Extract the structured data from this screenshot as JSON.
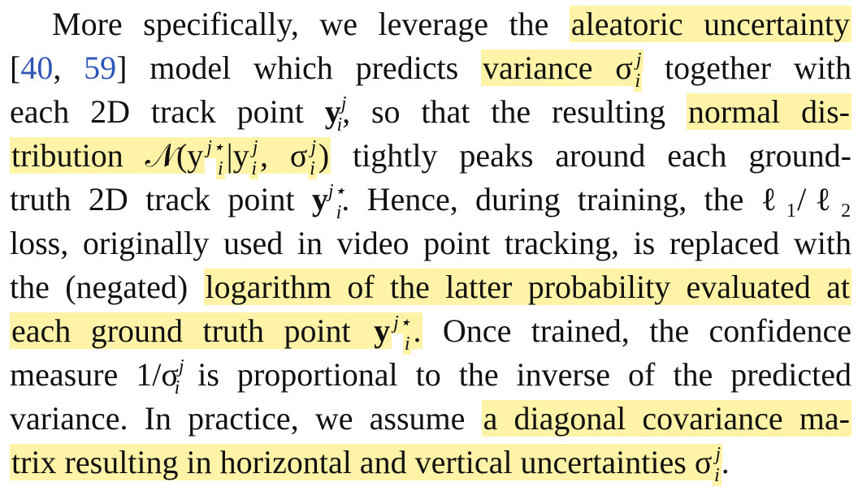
{
  "lines": [
    {
      "segments": [
        {
          "t": "More specifically, we leverage the "
        },
        {
          "t": "aleatoric uncertainty",
          "hl": true
        }
      ]
    },
    {
      "segments": [
        {
          "t": "["
        },
        {
          "t": "40",
          "cite": true
        },
        {
          "t": ", "
        },
        {
          "t": "59",
          "cite": true
        },
        {
          "t": "] model which predicts "
        },
        {
          "t": "variance σ",
          "hl": true,
          "supsub": [
            "j",
            "i"
          ]
        },
        {
          "t": " together with"
        }
      ]
    },
    {
      "segments": [
        {
          "t": "each 2D track point "
        },
        {
          "t": "y",
          "math": true,
          "supsub": [
            "j",
            "i"
          ]
        },
        {
          "t": ", so that the resulting "
        },
        {
          "t": "normal dis-",
          "hl": true
        }
      ]
    },
    {
      "segments": [
        {
          "t": "tribution 𝒩(y",
          "hl": true,
          "supsub": [
            "j⋆",
            "i"
          ]
        },
        {
          "t": "|y",
          "hl": true,
          "supsub": [
            "j",
            "i"
          ]
        },
        {
          "t": ", σ",
          "hl": true,
          "supsub": [
            "j",
            "i"
          ]
        },
        {
          "t": ")",
          "hl": true
        },
        {
          "t": " tightly peaks around each ground-"
        }
      ]
    },
    {
      "segments": [
        {
          "t": "truth 2D track point "
        },
        {
          "t": "y",
          "math": true,
          "supsub": [
            "j⋆",
            "i"
          ]
        },
        {
          "t": ". Hence, during training, the ℓ₁/ℓ₂"
        }
      ]
    },
    {
      "segments": [
        {
          "t": "loss, originally used in video point tracking, is replaced with"
        }
      ]
    },
    {
      "segments": [
        {
          "t": "the (negated) "
        },
        {
          "t": "logarithm of the latter probability evaluated at",
          "hl": true
        }
      ]
    },
    {
      "segments": [
        {
          "t": "each ground truth point ",
          "hl": true
        },
        {
          "t": "y",
          "hl": true,
          "math": true,
          "supsub": [
            "j⋆",
            "i"
          ]
        },
        {
          "t": ".",
          "hl": true
        },
        {
          "t": " Once trained, the confidence"
        }
      ]
    },
    {
      "segments": [
        {
          "t": "measure 1/σ",
          "supsub": [
            "j",
            "i"
          ]
        },
        {
          "t": " is proportional to the inverse of the predicted"
        }
      ]
    },
    {
      "segments": [
        {
          "t": "variance. In practice, we assume "
        },
        {
          "t": "a diagonal covariance ma-",
          "hl": true
        }
      ]
    },
    {
      "segments": [
        {
          "t": "trix resulting in horizontal and vertical uncertainties σ",
          "hl": true,
          "supsub": [
            "j",
            "i"
          ]
        },
        {
          "t": "."
        }
      ]
    }
  ],
  "colors": {
    "highlight": "#fff3a8",
    "citation": "#2f55b7",
    "text": "#111111"
  }
}
